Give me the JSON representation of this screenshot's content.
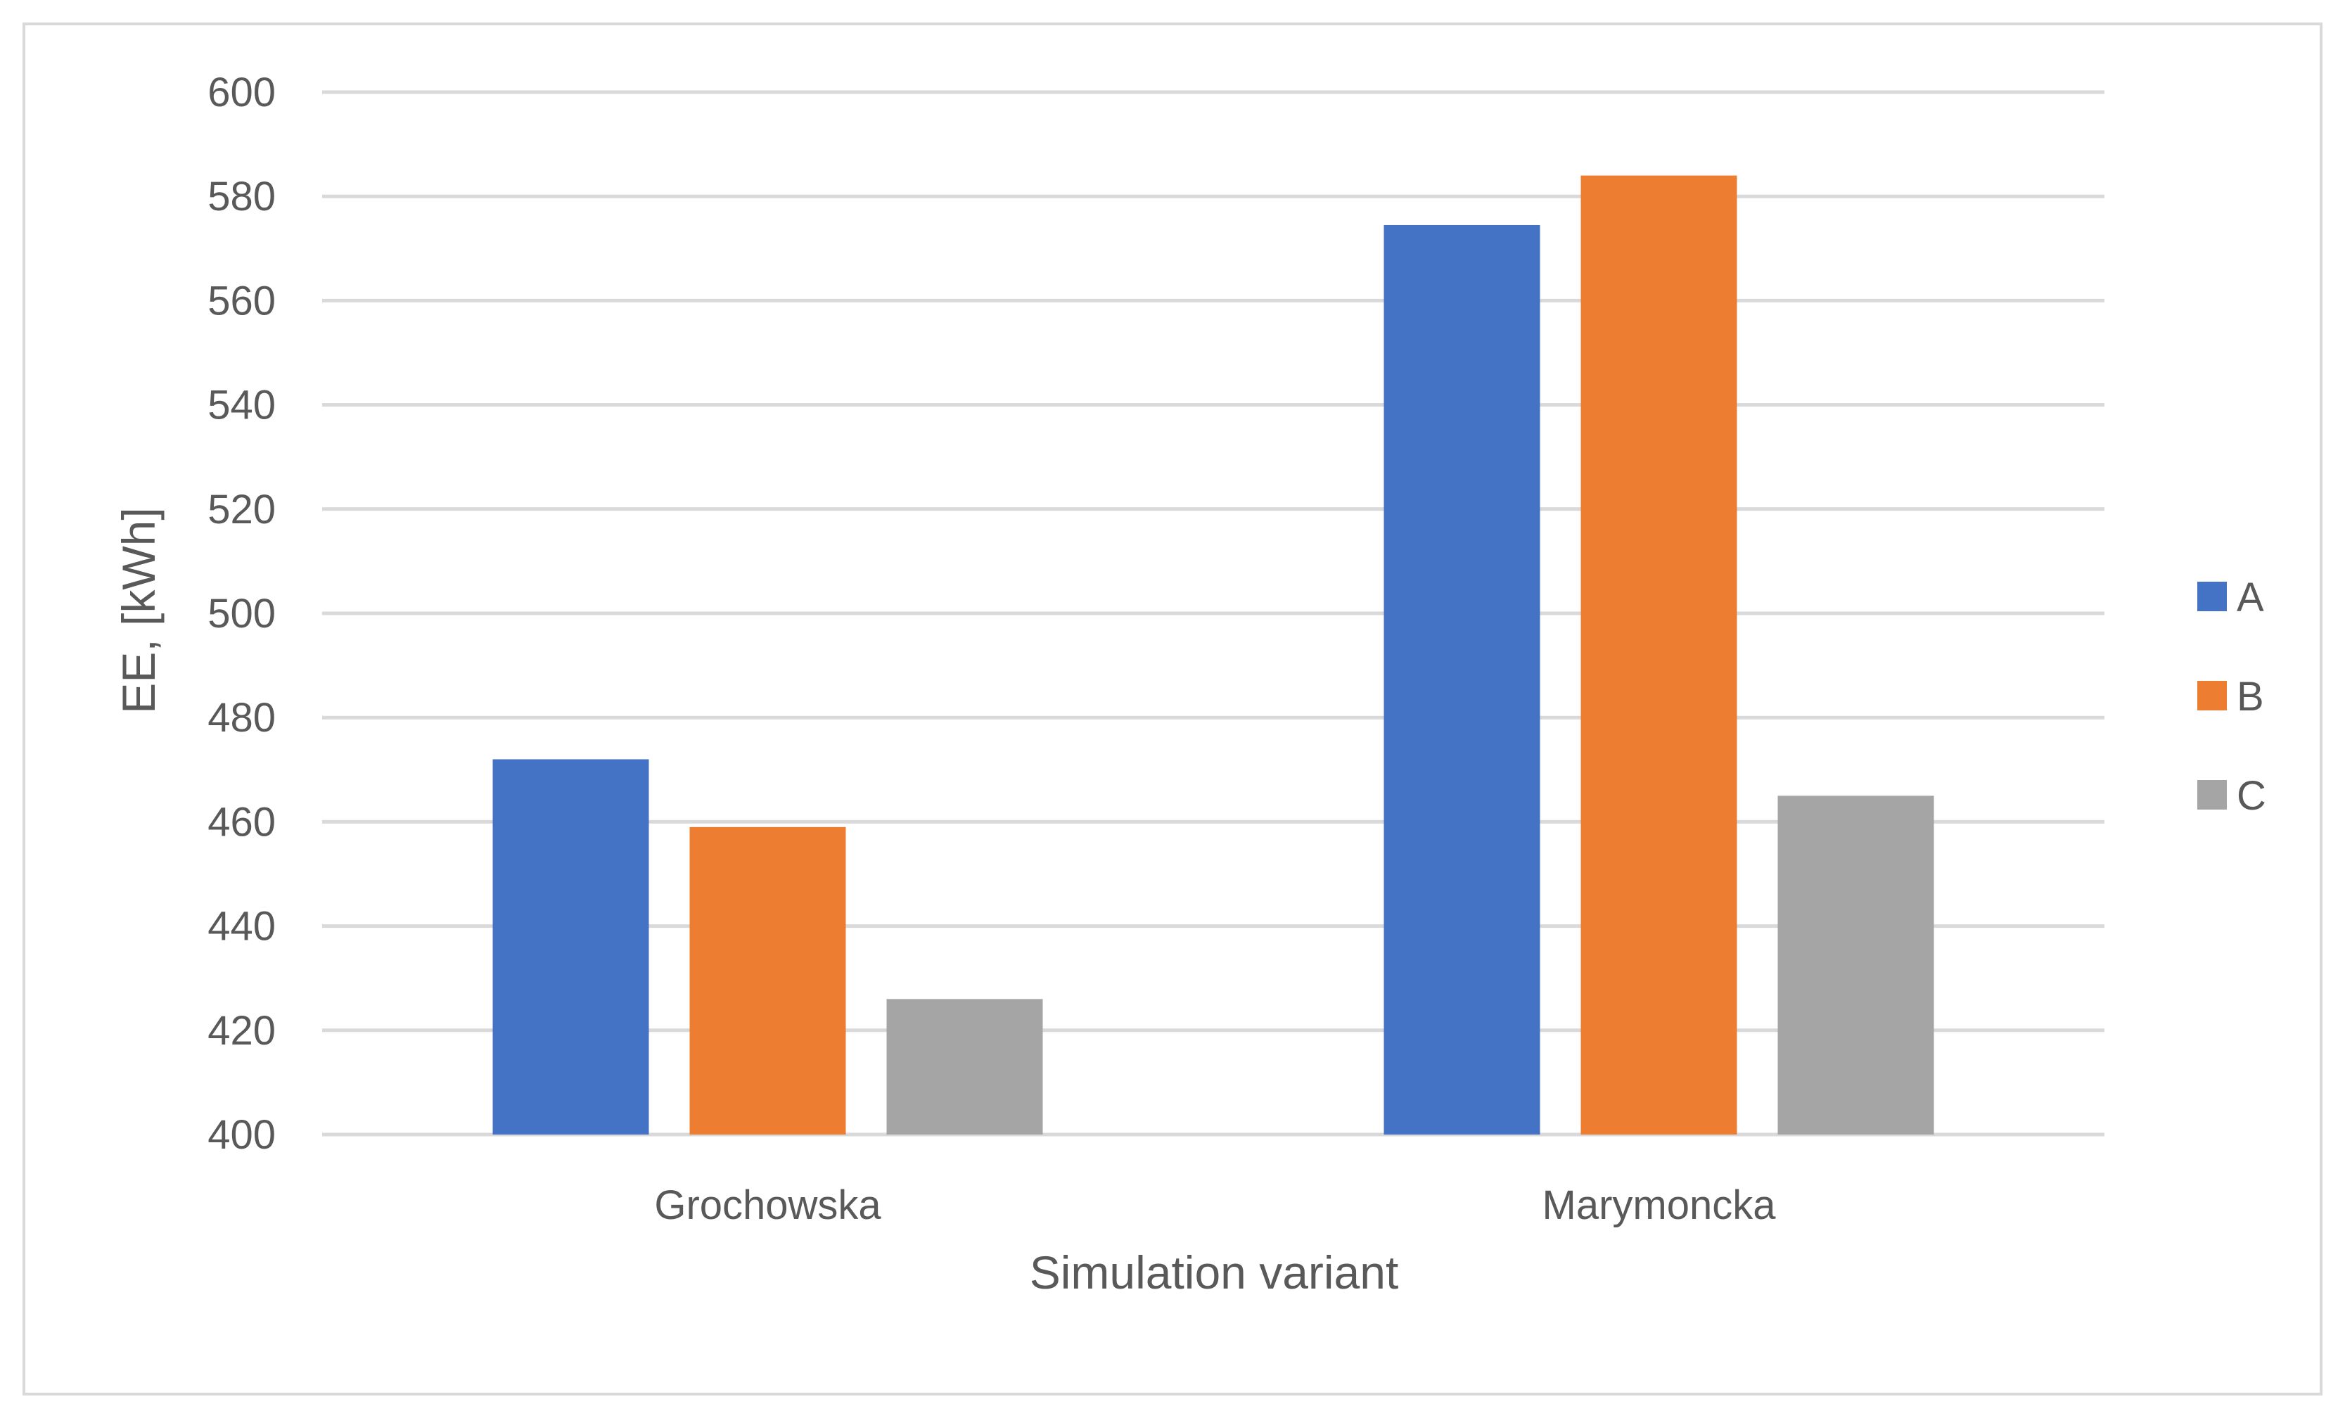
{
  "chart_data": {
    "type": "bar",
    "title": "",
    "xlabel": "Simulation variant",
    "ylabel": "EE, [kWh]",
    "categories": [
      "Grochowska",
      "Marymoncka"
    ],
    "series": [
      {
        "name": "A",
        "values": [
          472,
          574.5
        ],
        "color": "#4472C4"
      },
      {
        "name": "B",
        "values": [
          459,
          584
        ],
        "color": "#ED7D31"
      },
      {
        "name": "C",
        "values": [
          426,
          465
        ],
        "color": "#A5A5A5"
      }
    ],
    "ylim": [
      400,
      600
    ],
    "yticks": [
      400,
      420,
      440,
      460,
      480,
      500,
      520,
      540,
      560,
      580,
      600
    ],
    "grid": true,
    "legend_position": "right"
  },
  "colors": {
    "grid": "#D9D9D9",
    "text": "#595959",
    "frame": "#D9D9D9"
  }
}
